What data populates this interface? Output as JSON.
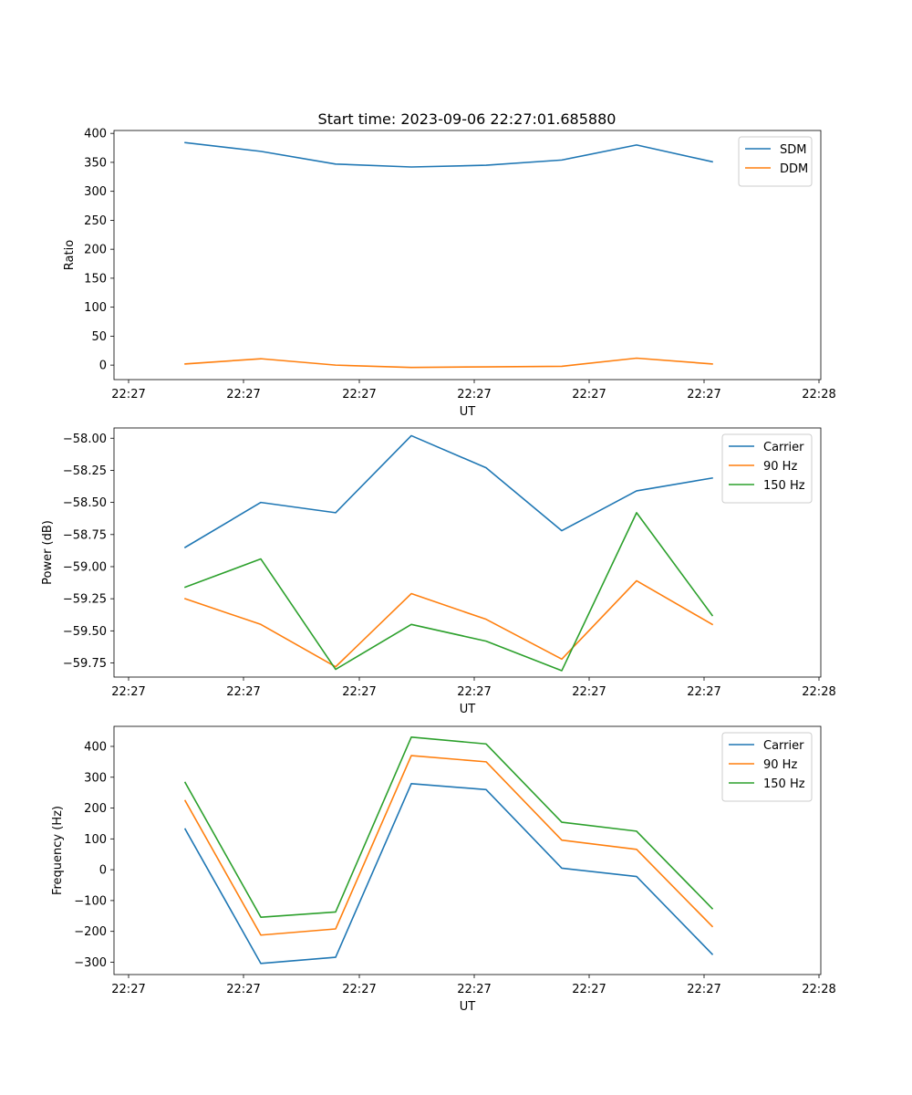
{
  "chart_data": [
    {
      "type": "line",
      "title": "Start time: 2023-09-06 22:27:01.685880",
      "xlabel": "UT",
      "ylabel": "Ratio",
      "x_tick_labels": [
        "22:27",
        "22:27",
        "22:27",
        "22:27",
        "22:27",
        "22:27",
        "22:28"
      ],
      "ylim": [
        -25,
        405
      ],
      "yticks": [
        0,
        50,
        100,
        150,
        200,
        250,
        300,
        350,
        400
      ],
      "ytick_labels": [
        "0",
        "50",
        "100",
        "150",
        "200",
        "250",
        "300",
        "350",
        "400"
      ],
      "legend": "top-right",
      "series": [
        {
          "name": "SDM",
          "color": "#1f77b4",
          "values": [
            384,
            369,
            347,
            342,
            345,
            354,
            380,
            351
          ]
        },
        {
          "name": "DDM",
          "color": "#ff7f0e",
          "values": [
            2,
            11,
            0,
            -4,
            -3,
            -2,
            12,
            2
          ]
        }
      ]
    },
    {
      "type": "line",
      "title": "",
      "xlabel": "UT",
      "ylabel": "Power (dB)",
      "x_tick_labels": [
        "22:27",
        "22:27",
        "22:27",
        "22:27",
        "22:27",
        "22:27",
        "22:28"
      ],
      "ylim": [
        -59.86,
        -57.92
      ],
      "yticks": [
        -59.75,
        -59.5,
        -59.25,
        -59.0,
        -58.75,
        -58.5,
        -58.25,
        -58.0
      ],
      "ytick_labels": [
        "−59.75",
        "−59.50",
        "−59.25",
        "−59.00",
        "−58.75",
        "−58.50",
        "−58.25",
        "−58.00"
      ],
      "legend": "top-right",
      "series": [
        {
          "name": "Carrier",
          "color": "#1f77b4",
          "values": [
            -58.85,
            -58.5,
            -58.58,
            -57.98,
            -58.23,
            -58.72,
            -58.41,
            -58.31
          ]
        },
        {
          "name": "90 Hz",
          "color": "#ff7f0e",
          "values": [
            -59.25,
            -59.45,
            -59.78,
            -59.21,
            -59.41,
            -59.72,
            -59.11,
            -59.45
          ]
        },
        {
          "name": "150 Hz",
          "color": "#2ca02c",
          "values": [
            -59.16,
            -58.94,
            -59.8,
            -59.45,
            -59.58,
            -59.81,
            -58.58,
            -59.38
          ]
        }
      ]
    },
    {
      "type": "line",
      "title": "",
      "xlabel": "UT",
      "ylabel": "Frequency (Hz)",
      "x_tick_labels": [
        "22:27",
        "22:27",
        "22:27",
        "22:27",
        "22:27",
        "22:27",
        "22:28"
      ],
      "ylim": [
        -340,
        465
      ],
      "yticks": [
        -300,
        -200,
        -100,
        0,
        100,
        200,
        300,
        400
      ],
      "ytick_labels": [
        "−300",
        "−200",
        "−100",
        "0",
        "100",
        "200",
        "300",
        "400"
      ],
      "legend": "top-right",
      "series": [
        {
          "name": "Carrier",
          "color": "#1f77b4",
          "values": [
            132,
            -304,
            -284,
            279,
            260,
            5,
            -22,
            -274
          ]
        },
        {
          "name": "90 Hz",
          "color": "#ff7f0e",
          "values": [
            224,
            -212,
            -192,
            370,
            350,
            96,
            66,
            -184
          ]
        },
        {
          "name": "150 Hz",
          "color": "#2ca02c",
          "values": [
            283,
            -154,
            -137,
            430,
            408,
            154,
            125,
            -126
          ]
        }
      ]
    }
  ]
}
